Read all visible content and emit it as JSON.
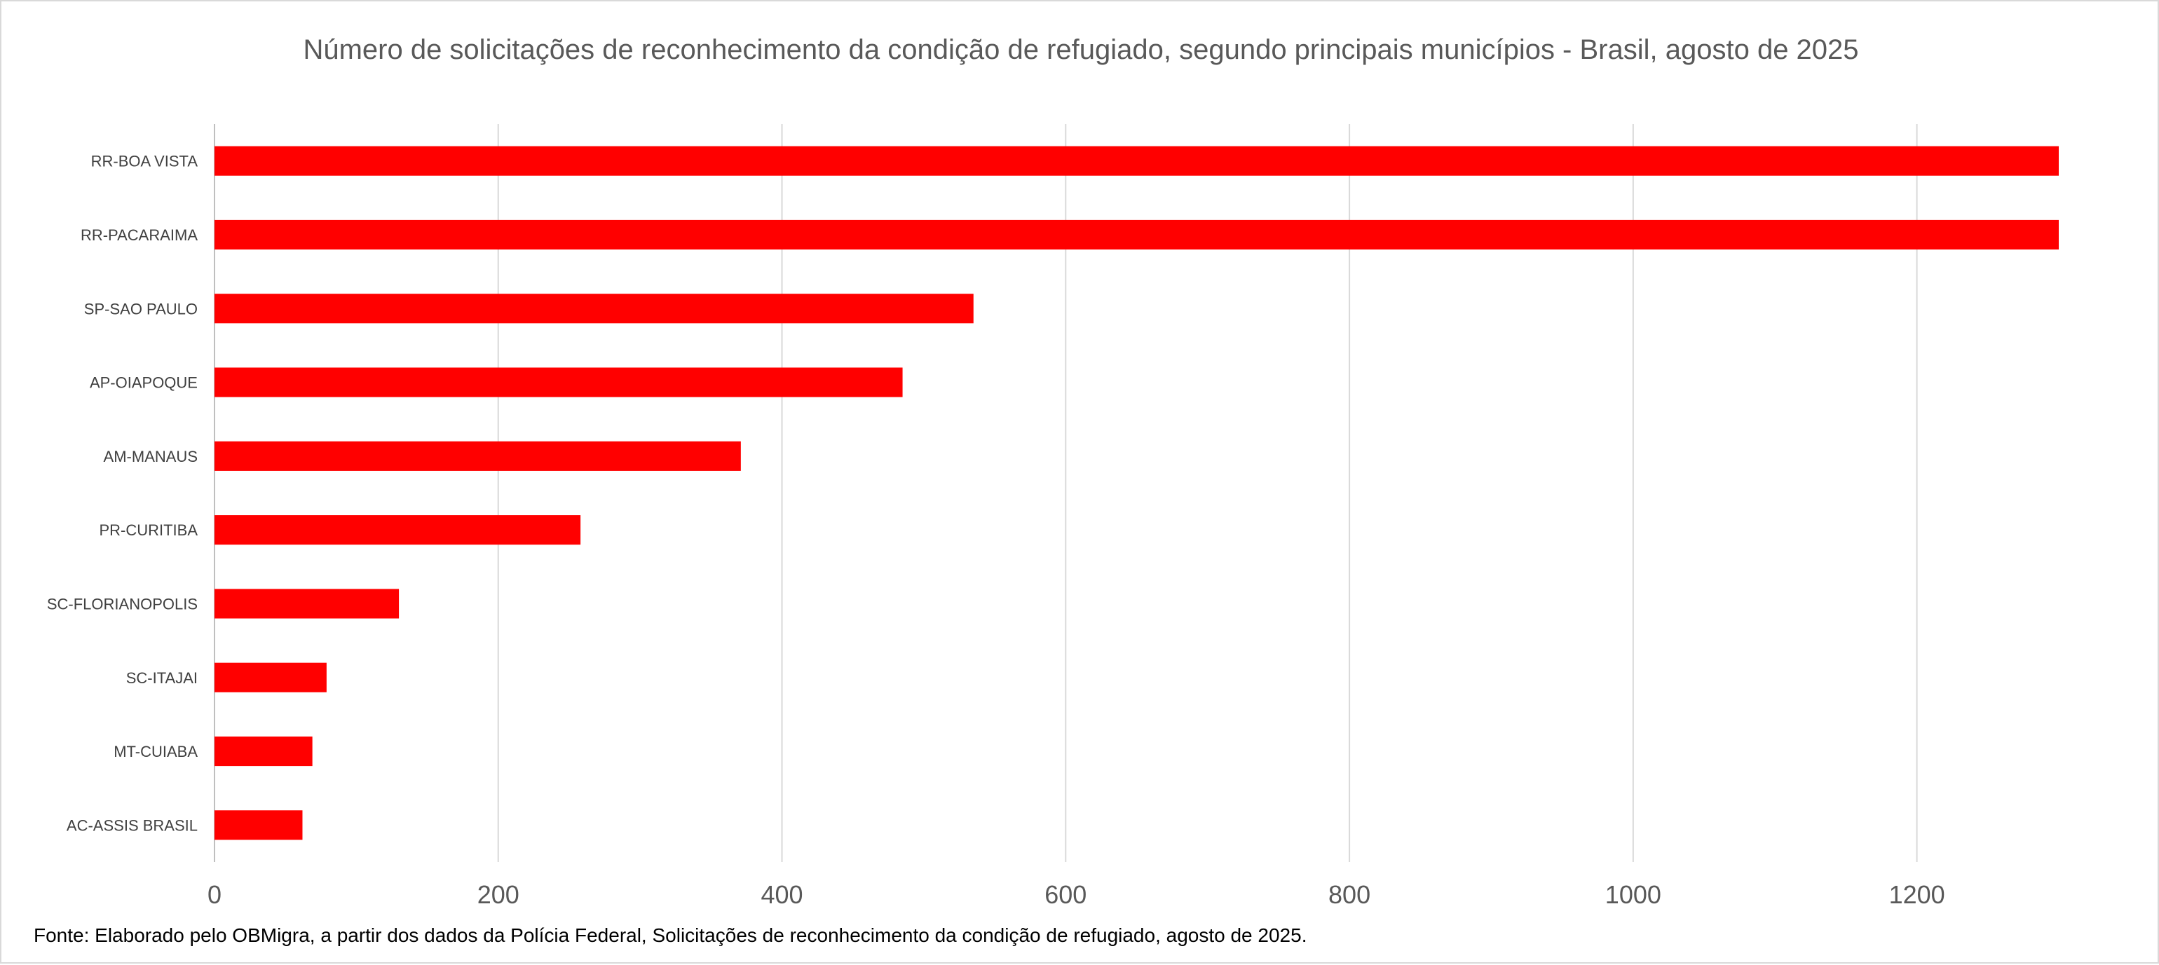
{
  "chart_data": {
    "type": "bar",
    "orientation": "horizontal",
    "title": "Número de solicitações de reconhecimento da condição de refugiado, segundo principais municípios - Brasil, agosto de 2025",
    "categories": [
      "RR-BOA VISTA",
      "RR-PACARAIMA",
      "SP-SAO PAULO",
      "AP-OIAPOQUE",
      "AM-MANAUS",
      "PR-CURITIBA",
      "SC-FLORIANOPOLIS",
      "SC-ITAJAI",
      "MT-CUIABA",
      "AC-ASSIS BRASIL"
    ],
    "values": [
      1302,
      1302,
      535,
      485,
      371,
      258,
      130,
      79,
      69,
      62
    ],
    "xlim": [
      0,
      1300
    ],
    "x_ticks": [
      0,
      200,
      400,
      600,
      800,
      1000,
      1200
    ],
    "xlabel": "",
    "ylabel": "",
    "grid": "vertical",
    "legend": "none",
    "bar_color": "#ff0000",
    "gridline_color": "#d9d9d9"
  },
  "source_note": "Fonte: Elaborado pelo OBMigra, a partir dos dados da Polícia Federal, Solicitações de reconhecimento da condição de refugiado, agosto  de 2025."
}
